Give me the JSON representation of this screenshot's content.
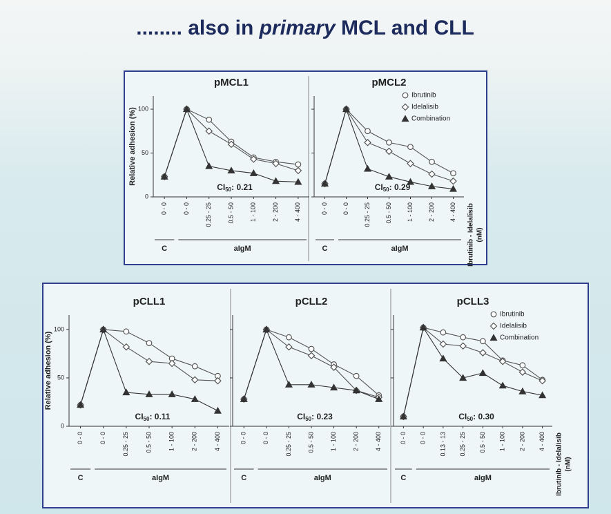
{
  "slide_title": {
    "prefix": "........ also in ",
    "italic": "primary",
    "suffix": " MCL and CLL"
  },
  "chart_data": [
    {
      "type": "line",
      "title": "pMCL1",
      "ylabel": "Relative adhesion (%)",
      "ylim": [
        0,
        115
      ],
      "yticks": [
        0,
        50,
        100
      ],
      "categories": [
        "0 - 0",
        "0 - 0",
        "0.25 - 25",
        "0.5 - 50",
        "1 - 100",
        "2 - 200",
        "4 - 400"
      ],
      "group_labels": [
        "C",
        "aIgM"
      ],
      "ci": [
        "CI",
        "50",
        ": 0.21"
      ],
      "series": [
        {
          "color": "#555555",
          "marker": "circle",
          "values": [
            23,
            100,
            88,
            63,
            45,
            40,
            37
          ]
        },
        {
          "color": "#555555",
          "marker": "diamond",
          "values": [
            23,
            100,
            75,
            60,
            43,
            38,
            30
          ]
        },
        {
          "color": "#333333",
          "marker": "triangle",
          "values": [
            23,
            100,
            35,
            30,
            27,
            18,
            17
          ]
        }
      ]
    },
    {
      "type": "line",
      "title": "pMCL2",
      "ylim": [
        0,
        115
      ],
      "yticks": [
        0,
        50,
        100
      ],
      "categories": [
        "0 - 0",
        "0 - 0",
        "0.25 - 25",
        "0.5 - 50",
        "1 - 100",
        "2 - 200",
        "4 - 400"
      ],
      "group_labels": [
        "C",
        "aIgM"
      ],
      "ci": [
        "CI",
        "50",
        ": 0.29"
      ],
      "xlabel": [
        "Ibrutinib - Idelalisib",
        "(nM)"
      ],
      "series": [
        {
          "name": "Ibrutinib",
          "color": "#555555",
          "marker": "circle",
          "values": [
            15,
            100,
            75,
            62,
            57,
            40,
            27
          ]
        },
        {
          "name": "Idelalisib",
          "color": "#555555",
          "marker": "diamond",
          "values": [
            15,
            100,
            62,
            52,
            38,
            26,
            18
          ]
        },
        {
          "name": "Combination",
          "color": "#333333",
          "marker": "triangle",
          "values": [
            15,
            100,
            32,
            23,
            17,
            12,
            9
          ]
        }
      ]
    },
    {
      "type": "line",
      "title": "pCLL1",
      "ylabel": "Relative adhesion (%)",
      "ylim": [
        0,
        115
      ],
      "yticks": [
        0,
        50,
        100
      ],
      "categories": [
        "0 - 0",
        "0 - 0",
        "0.25 - 25",
        "0.5 - 50",
        "1 - 100",
        "2 - 200",
        "4 - 400"
      ],
      "group_labels": [
        "C",
        "aIgM"
      ],
      "ci": [
        "CI",
        "50",
        ": 0.11"
      ],
      "series": [
        {
          "color": "#555555",
          "marker": "circle",
          "values": [
            22,
            100,
            98,
            86,
            70,
            62,
            52
          ]
        },
        {
          "color": "#555555",
          "marker": "diamond",
          "values": [
            22,
            100,
            82,
            67,
            65,
            48,
            47
          ]
        },
        {
          "color": "#333333",
          "marker": "triangle",
          "values": [
            22,
            100,
            35,
            33,
            33,
            28,
            16
          ]
        }
      ]
    },
    {
      "type": "line",
      "title": "pCLL2",
      "ylim": [
        0,
        115
      ],
      "yticks": [
        0,
        50,
        100
      ],
      "categories": [
        "0 - 0",
        "0 - 0",
        "0.25 - 25",
        "0.5 - 50",
        "1 - 100",
        "2 - 200",
        "4 - 400"
      ],
      "group_labels": [
        "C",
        "aIgM"
      ],
      "ci": [
        "CI",
        "50",
        ": 0.23"
      ],
      "series": [
        {
          "color": "#555555",
          "marker": "circle",
          "values": [
            28,
            100,
            92,
            80,
            64,
            52,
            32
          ]
        },
        {
          "color": "#555555",
          "marker": "diamond",
          "values": [
            28,
            100,
            82,
            73,
            61,
            37,
            30
          ]
        },
        {
          "color": "#333333",
          "marker": "triangle",
          "values": [
            28,
            100,
            43,
            43,
            40,
            37,
            28
          ]
        }
      ]
    },
    {
      "type": "line",
      "title": "pCLL3",
      "ylim": [
        0,
        115
      ],
      "yticks": [
        0,
        50,
        100
      ],
      "categories": [
        "0 - 0",
        "0 - 0",
        "0.13 - 13",
        "0.25 - 25",
        "0.5 - 50",
        "1 - 100",
        "2 - 200",
        "4 - 400"
      ],
      "group_labels": [
        "C",
        "aIgM"
      ],
      "ci": [
        "CI",
        "50",
        ": 0.30"
      ],
      "xlabel": [
        "Ibrutinib - Idelalisib",
        "(nM)"
      ],
      "series": [
        {
          "name": "Ibrutinib",
          "color": "#555555",
          "marker": "circle",
          "values": [
            10,
            102,
            97,
            92,
            88,
            68,
            63,
            48
          ]
        },
        {
          "name": "Idelalisib",
          "color": "#555555",
          "marker": "diamond",
          "values": [
            10,
            102,
            85,
            83,
            76,
            67,
            56,
            47
          ]
        },
        {
          "name": "Combination",
          "color": "#333333",
          "marker": "triangle",
          "values": [
            10,
            102,
            70,
            50,
            55,
            42,
            36,
            32
          ]
        }
      ]
    }
  ]
}
